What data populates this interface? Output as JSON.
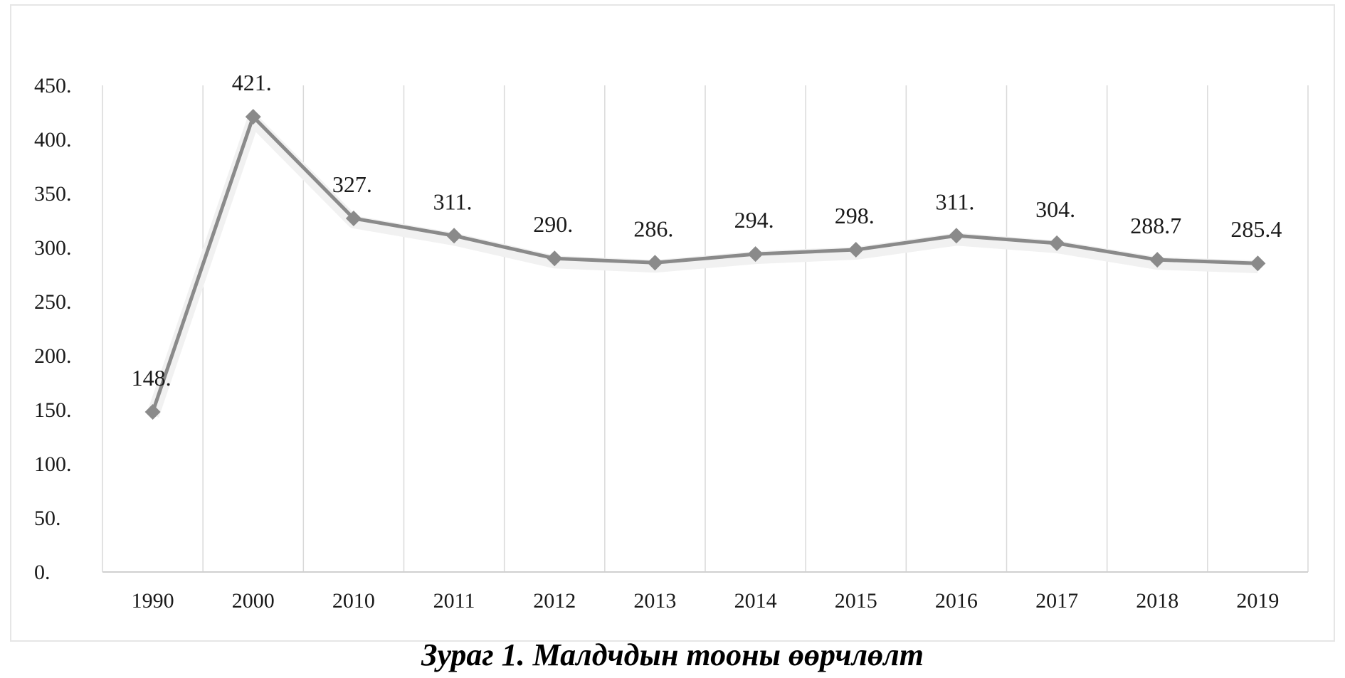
{
  "caption": "Зураг 1. Малдчдын тооны өөрчлөлт",
  "chart_data": {
    "type": "line",
    "title": "",
    "xlabel": "",
    "ylabel": "",
    "categories": [
      "1990",
      "2000",
      "2010",
      "2011",
      "2012",
      "2013",
      "2014",
      "2015",
      "2016",
      "2017",
      "2018",
      "2019"
    ],
    "series": [
      {
        "values": [
          148,
          421,
          327,
          311,
          290,
          286,
          294,
          298,
          311,
          304,
          288.7,
          285.4
        ],
        "data_labels": [
          "148.",
          "421.",
          "327.",
          "311.",
          "290.",
          "286.",
          "294.",
          "298.",
          "311.",
          "304.",
          "288.7",
          "285.4"
        ],
        "color": "#8a8a8a",
        "marker": "diamond"
      }
    ],
    "yticks": [
      "0.",
      "50.",
      "100.",
      "150.",
      "200.",
      "250.",
      "300.",
      "350.",
      "400.",
      "450."
    ],
    "ylim": [
      0,
      450
    ],
    "grid": "vertical",
    "legend": "none",
    "colors": {
      "line": "#8a8a8a",
      "grid": "#d9d9d9",
      "axis": "#d0d0d0",
      "text": "#1a1a1a"
    }
  }
}
